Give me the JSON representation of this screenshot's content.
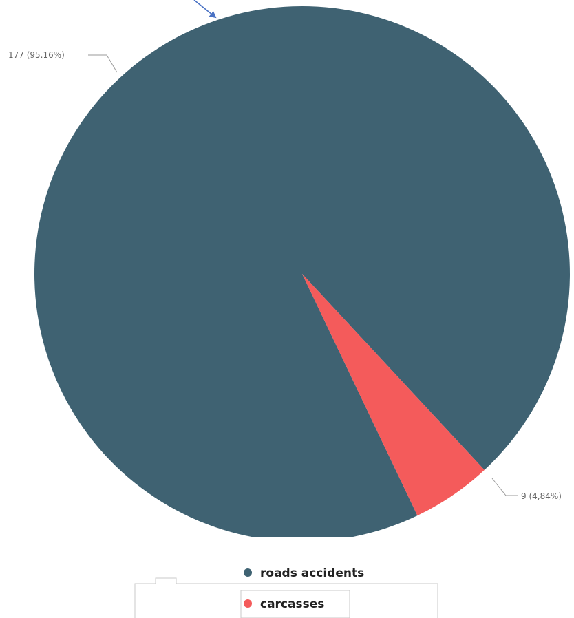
{
  "chart_data": {
    "type": "pie",
    "categories": [
      "roads accidents",
      "carcasses"
    ],
    "values": [
      177,
      9
    ],
    "labels": [
      "177 (95.16%)",
      "9 (4,84%)"
    ],
    "colors": [
      "#3f6272",
      "#f45b5b"
    ],
    "legend": "bottom-center",
    "title": ""
  },
  "annotation": {
    "arrow_color": "#4a72c4"
  }
}
